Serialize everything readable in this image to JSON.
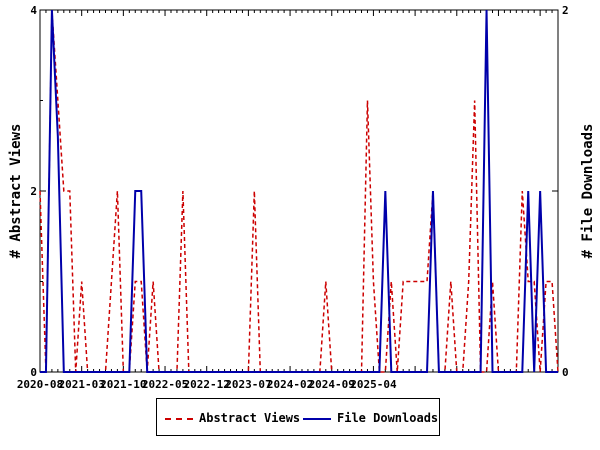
{
  "chart_data": {
    "type": "line",
    "ylabel_left": "# Abstract Views",
    "ylabel_right": "# File Downloads",
    "y_left_range": [
      0,
      4
    ],
    "y_right_range": [
      0,
      2
    ],
    "y_left_ticks": [
      "0",
      "2",
      "4"
    ],
    "y_right_ticks": [
      "0",
      "1",
      "2"
    ],
    "x_tick_labels": [
      "2020-08",
      "2021-03",
      "2021-10",
      "2022-05",
      "2022-12",
      "2023-07",
      "2024-02",
      "2024-09",
      "2025-04"
    ],
    "x_start": "2020-08",
    "grid": false,
    "legend_placement": "bottom",
    "series": [
      {
        "name": "Abstract Views",
        "axis": "left",
        "color": "#cc0000",
        "dash": true,
        "values": [
          2,
          0,
          4,
          3,
          2,
          2,
          0,
          1,
          0,
          0,
          0,
          0,
          1,
          2,
          0,
          0,
          1,
          1,
          0,
          1,
          0,
          0,
          0,
          0,
          2,
          0,
          0,
          0,
          0,
          0,
          0,
          0,
          0,
          0,
          0,
          0,
          2,
          0,
          0,
          0,
          0,
          0,
          0,
          0,
          0,
          0,
          0,
          0,
          1,
          0,
          0,
          0,
          0,
          0,
          0,
          3,
          1,
          0,
          0,
          1,
          0,
          1,
          1,
          1,
          1,
          1,
          2,
          0,
          0,
          1,
          0,
          0,
          1,
          3,
          0,
          0,
          1,
          0,
          0,
          0,
          0,
          2,
          1,
          1,
          0,
          1,
          1,
          0
        ]
      },
      {
        "name": "File Downloads",
        "axis": "right",
        "color": "#0000aa",
        "dash": false,
        "values": [
          0,
          0,
          2,
          1.3,
          0,
          0,
          0,
          0,
          0,
          0,
          0,
          0,
          0,
          0,
          0,
          0,
          1,
          1,
          0,
          0,
          0,
          0,
          0,
          0,
          0,
          0,
          0,
          0,
          0,
          0,
          0,
          0,
          0,
          0,
          0,
          0,
          0,
          0,
          0,
          0,
          0,
          0,
          0,
          0,
          0,
          0,
          0,
          0,
          0,
          0,
          0,
          0,
          0,
          0,
          0,
          0,
          0,
          0,
          1,
          0,
          0,
          0,
          0,
          0,
          0,
          0,
          1,
          0,
          0,
          0,
          0,
          0,
          0,
          0,
          0,
          2,
          0,
          0,
          0,
          0,
          0,
          0,
          1,
          0,
          1,
          0,
          0,
          0
        ]
      }
    ]
  },
  "legend": {
    "items": [
      "Abstract Views",
      "File Downloads"
    ]
  }
}
